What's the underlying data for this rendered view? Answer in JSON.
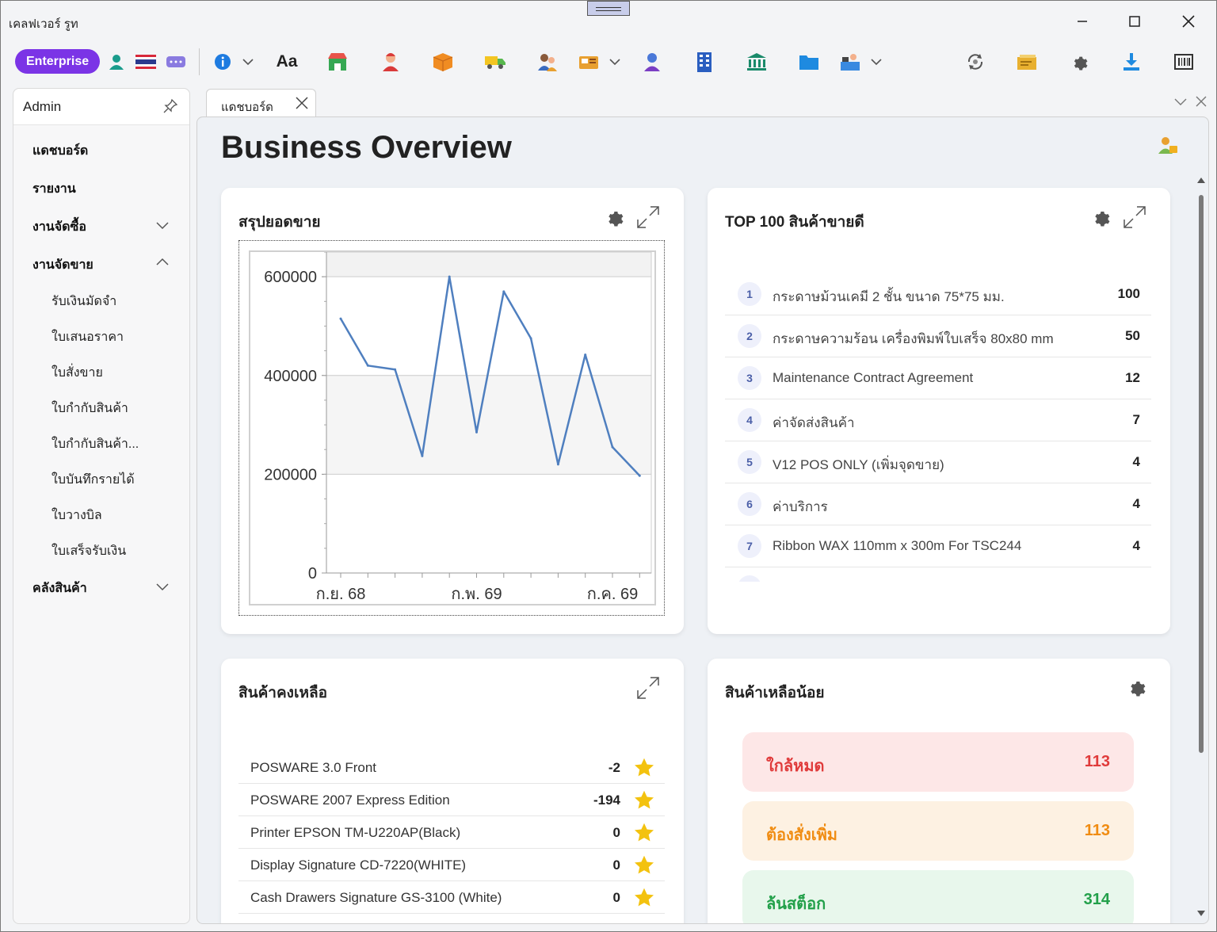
{
  "window": {
    "title": "เคลฟเวอร์ รูท"
  },
  "toolbar": {
    "edition": "Enterprise",
    "font_label": "Aa"
  },
  "sidebar": {
    "title": "Admin",
    "items": [
      {
        "label": "แดชบอร์ด"
      },
      {
        "label": "รายงาน"
      },
      {
        "label": "งานจัดซื้อ"
      },
      {
        "label": "งานจัดขาย"
      },
      {
        "label": "คลังสินค้า"
      }
    ],
    "sales_sub": [
      "รับเงินมัดจำ",
      "ใบเสนอราคา",
      "ใบสั่งขาย",
      "ใบกำกับสินค้า",
      "ใบกำกับสินค้า...",
      "ใบบันทึกรายได้",
      "ใบวางบิล",
      "ใบเสร็จรับเงิน"
    ]
  },
  "tab": {
    "label": "แดชบอร์ด"
  },
  "page": {
    "title": "Business Overview"
  },
  "sales_summary": {
    "title": "สรุปยอดขาย"
  },
  "chart_data": {
    "type": "line",
    "title": "",
    "xlabel": "",
    "ylabel": "",
    "x_tick_labels": [
      "ก.ย. 68",
      "ก.พ. 69",
      "ก.ค. 69"
    ],
    "y_tick_labels": [
      "600000",
      "400000",
      "200000",
      "0"
    ],
    "ylim": [
      0,
      650000
    ],
    "grid": true,
    "series": [
      {
        "color": "#4f7fbf",
        "values": [
          515000,
          420000,
          412000,
          237000,
          600000,
          285000,
          570000,
          475000,
          220000,
          442000,
          255000,
          197000
        ]
      }
    ]
  },
  "top_products": {
    "title": "TOP 100 สินค้าขายดี",
    "rows": [
      {
        "rank": "1",
        "name": "กระดาษม้วนเคมี 2 ชั้น ขนาด 75*75 มม.",
        "qty": "100"
      },
      {
        "rank": "2",
        "name": "กระดาษความร้อน เครื่องพิมพ์ใบเสร็จ 80x80 mm",
        "qty": "50"
      },
      {
        "rank": "3",
        "name": "Maintenance Contract Agreement",
        "qty": "12"
      },
      {
        "rank": "4",
        "name": "ค่าจัดส่งสินค้า",
        "qty": "7"
      },
      {
        "rank": "5",
        "name": "V12 POS ONLY (เพิ่มจุดขาย)",
        "qty": "4"
      },
      {
        "rank": "6",
        "name": "ค่าบริการ",
        "qty": "4"
      },
      {
        "rank": "7",
        "name": "Ribbon WAX 110mm x 300m For TSC244",
        "qty": "4"
      }
    ]
  },
  "remaining_stock": {
    "title": "สินค้าคงเหลือ",
    "rows": [
      {
        "name": "POSWARE 3.0 Front",
        "qty": "-2"
      },
      {
        "name": "POSWARE 2007 Express Edition",
        "qty": "-194"
      },
      {
        "name": "Printer EPSON TM-U220AP(Black)",
        "qty": "0"
      },
      {
        "name": "Display Signature CD-7220(WHITE)",
        "qty": "0"
      },
      {
        "name": "Cash Drawers Signature GS-3100 (White)",
        "qty": "0"
      }
    ]
  },
  "low_stock": {
    "title": "สินค้าเหลือน้อย",
    "items": [
      {
        "label": "ใกล้หมด",
        "value": "113",
        "bg": "#fde7e7",
        "color": "#e03b3b"
      },
      {
        "label": "ต้องสั่งเพิ่ม",
        "value": "113",
        "bg": "#fdf1e2",
        "color": "#f08c12"
      },
      {
        "label": "ล้นสต็อก",
        "value": "314",
        "bg": "#e8f7ec",
        "color": "#22a04a"
      }
    ]
  }
}
